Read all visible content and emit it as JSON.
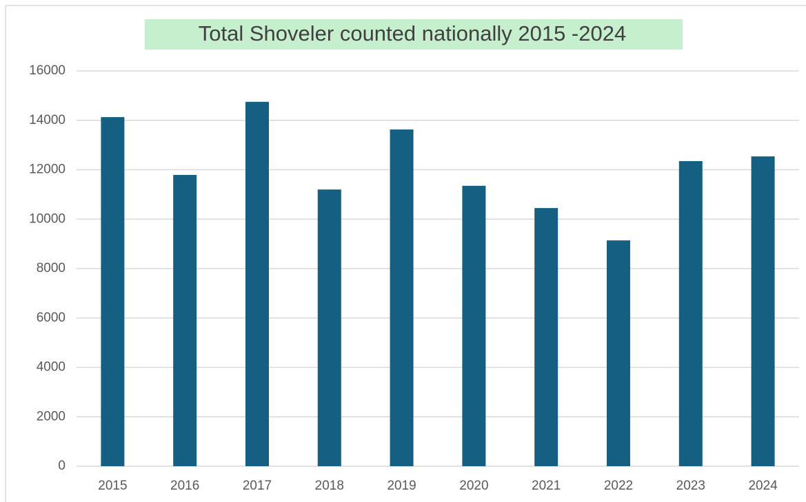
{
  "chart_data": {
    "type": "bar",
    "title": "Total Shoveler counted nationally 2015 -2024",
    "categories": [
      "2015",
      "2016",
      "2017",
      "2018",
      "2019",
      "2020",
      "2021",
      "2022",
      "2023",
      "2024"
    ],
    "values": [
      14130,
      11790,
      14750,
      11200,
      13630,
      11350,
      10450,
      9140,
      12350,
      12540
    ],
    "color": "#156082",
    "ylim": [
      0,
      16000
    ],
    "yticks": [
      0,
      2000,
      4000,
      6000,
      8000,
      10000,
      12000,
      14000,
      16000
    ],
    "grid": true
  }
}
